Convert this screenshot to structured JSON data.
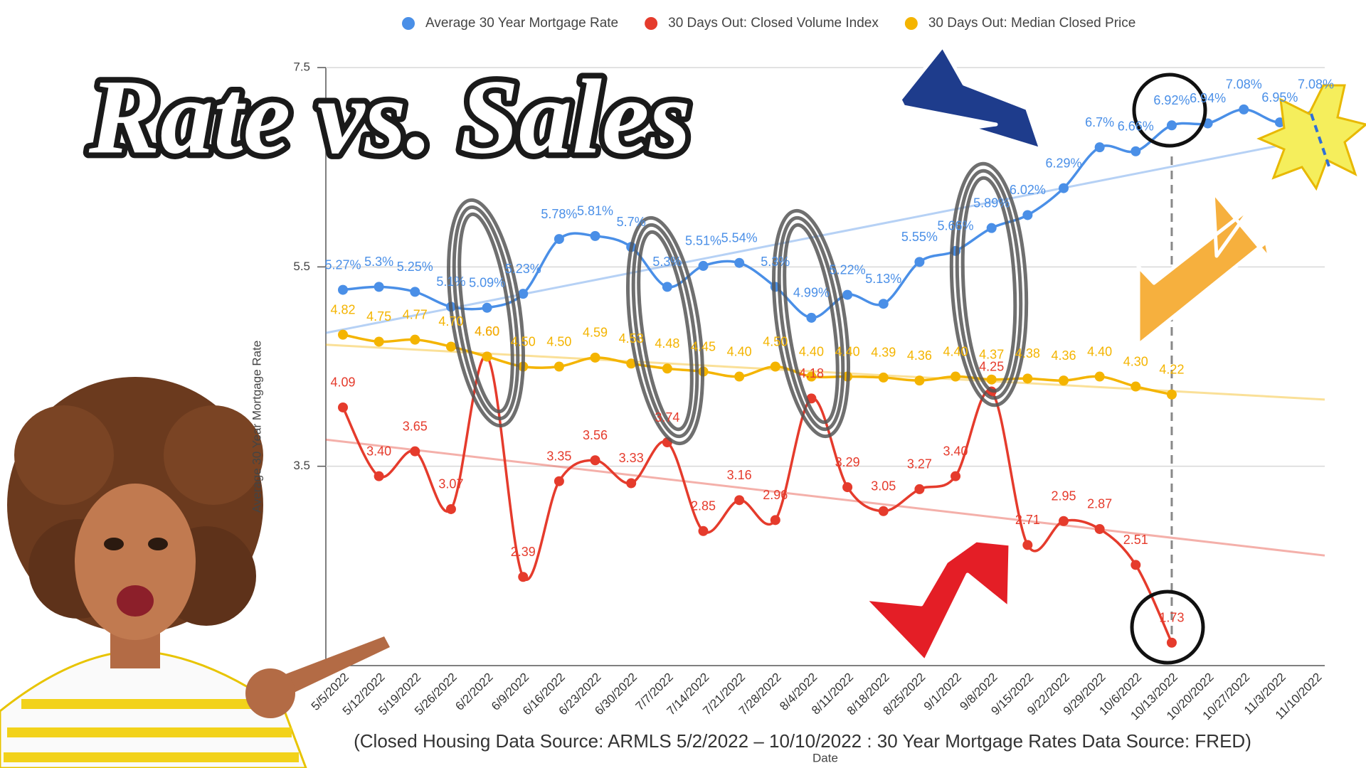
{
  "chart_data": {
    "type": "line",
    "title": "Rate vs. Sales",
    "y_label": "Average 30 Year Mortgage Rate",
    "x_label": "Date",
    "note": "(Closed Housing Data Source:  ARMLS 5/2/2022 – 10/10/2022 : 30 Year Mortgage Rates Data Source:  FRED)",
    "categories": [
      "5/5/2022",
      "5/12/2022",
      "5/19/2022",
      "5/26/2022",
      "6/2/2022",
      "6/9/2022",
      "6/16/2022",
      "6/23/2022",
      "6/30/2022",
      "7/7/2022",
      "7/14/2022",
      "7/21/2022",
      "7/28/2022",
      "8/4/2022",
      "8/11/2022",
      "8/18/2022",
      "8/25/2022",
      "9/1/2022",
      "9/8/2022",
      "9/15/2022",
      "9/22/2022",
      "9/29/2022",
      "10/6/2022",
      "10/13/2022",
      "10/20/2022",
      "10/27/2022",
      "11/3/2022",
      "11/10/2022"
    ],
    "series": [
      {
        "name": "Average 30 Year Mortgage Rate",
        "color": "#4a8fe7",
        "values": [
          5.27,
          5.3,
          5.25,
          5.1,
          5.09,
          5.23,
          5.78,
          5.81,
          5.7,
          5.3,
          5.51,
          5.54,
          5.3,
          4.99,
          5.22,
          5.13,
          5.55,
          5.66,
          5.89,
          6.02,
          6.29,
          6.7,
          6.66,
          6.92,
          6.94,
          7.08,
          6.95,
          7.08
        ],
        "value_labels": [
          "5.27%",
          "5.3%",
          "5.25%",
          "5.1%",
          "5.09%",
          "5.23%",
          "5.78%",
          "5.81%",
          "5.7%",
          "5.3%",
          "5.51%",
          "5.54%",
          "5.3%",
          "4.99%",
          "5.22%",
          "5.13%",
          "5.55%",
          "5.66%",
          "5.89%",
          "6.02%",
          "6.29%",
          "6.7%",
          "6.66%",
          "6.92%",
          "6.94%",
          "7.08%",
          "6.95%",
          "7.08%"
        ]
      },
      {
        "name": "30 Days Out: Closed Volume Index",
        "color": "#e53b2c",
        "values": [
          4.09,
          3.4,
          3.65,
          3.07,
          4.6,
          2.39,
          3.35,
          3.56,
          3.33,
          3.74,
          2.85,
          3.16,
          2.96,
          4.18,
          3.29,
          3.05,
          3.27,
          3.4,
          4.25,
          2.71,
          2.95,
          2.87,
          2.51,
          1.73,
          null,
          null,
          null,
          null
        ],
        "value_labels": [
          "4.09",
          "3.40",
          "3.65",
          "3.07",
          "4.60",
          "2.39",
          "3.35",
          "3.56",
          "3.33",
          "3.74",
          "2.85",
          "3.16",
          "2.96",
          "4.18",
          "3.29",
          "3.05",
          "3.27",
          "3.40",
          "4.25",
          "2.71",
          "2.95",
          "2.87",
          "2.51",
          "1.73",
          null,
          null,
          null,
          null
        ]
      },
      {
        "name": "30 Days Out: Median Closed Price",
        "color": "#f4b400",
        "values": [
          4.82,
          4.75,
          4.77,
          4.7,
          4.6,
          4.5,
          4.5,
          4.59,
          4.53,
          4.48,
          4.45,
          4.4,
          4.5,
          4.4,
          4.4,
          4.39,
          4.36,
          4.4,
          4.37,
          4.38,
          4.36,
          4.4,
          4.3,
          4.22,
          null,
          null,
          null,
          null
        ],
        "value_labels": [
          "4.82",
          "4.75",
          "4.77",
          "4.70",
          "4.60",
          "4.50",
          "4.50",
          "4.59",
          "4.53",
          "4.48",
          "4.45",
          "4.40",
          "4.50",
          "4.40",
          "4.40",
          "4.39",
          "4.36",
          "4.40",
          "4.37",
          "4.38",
          "4.36",
          "4.40",
          "4.30",
          "4.22",
          null,
          null,
          null,
          null
        ]
      }
    ],
    "ylim": [
      1.5,
      7.5
    ],
    "yticks": [
      7.5,
      5.5,
      3.5
    ],
    "grid": true,
    "trendline": true,
    "legend": "top"
  }
}
